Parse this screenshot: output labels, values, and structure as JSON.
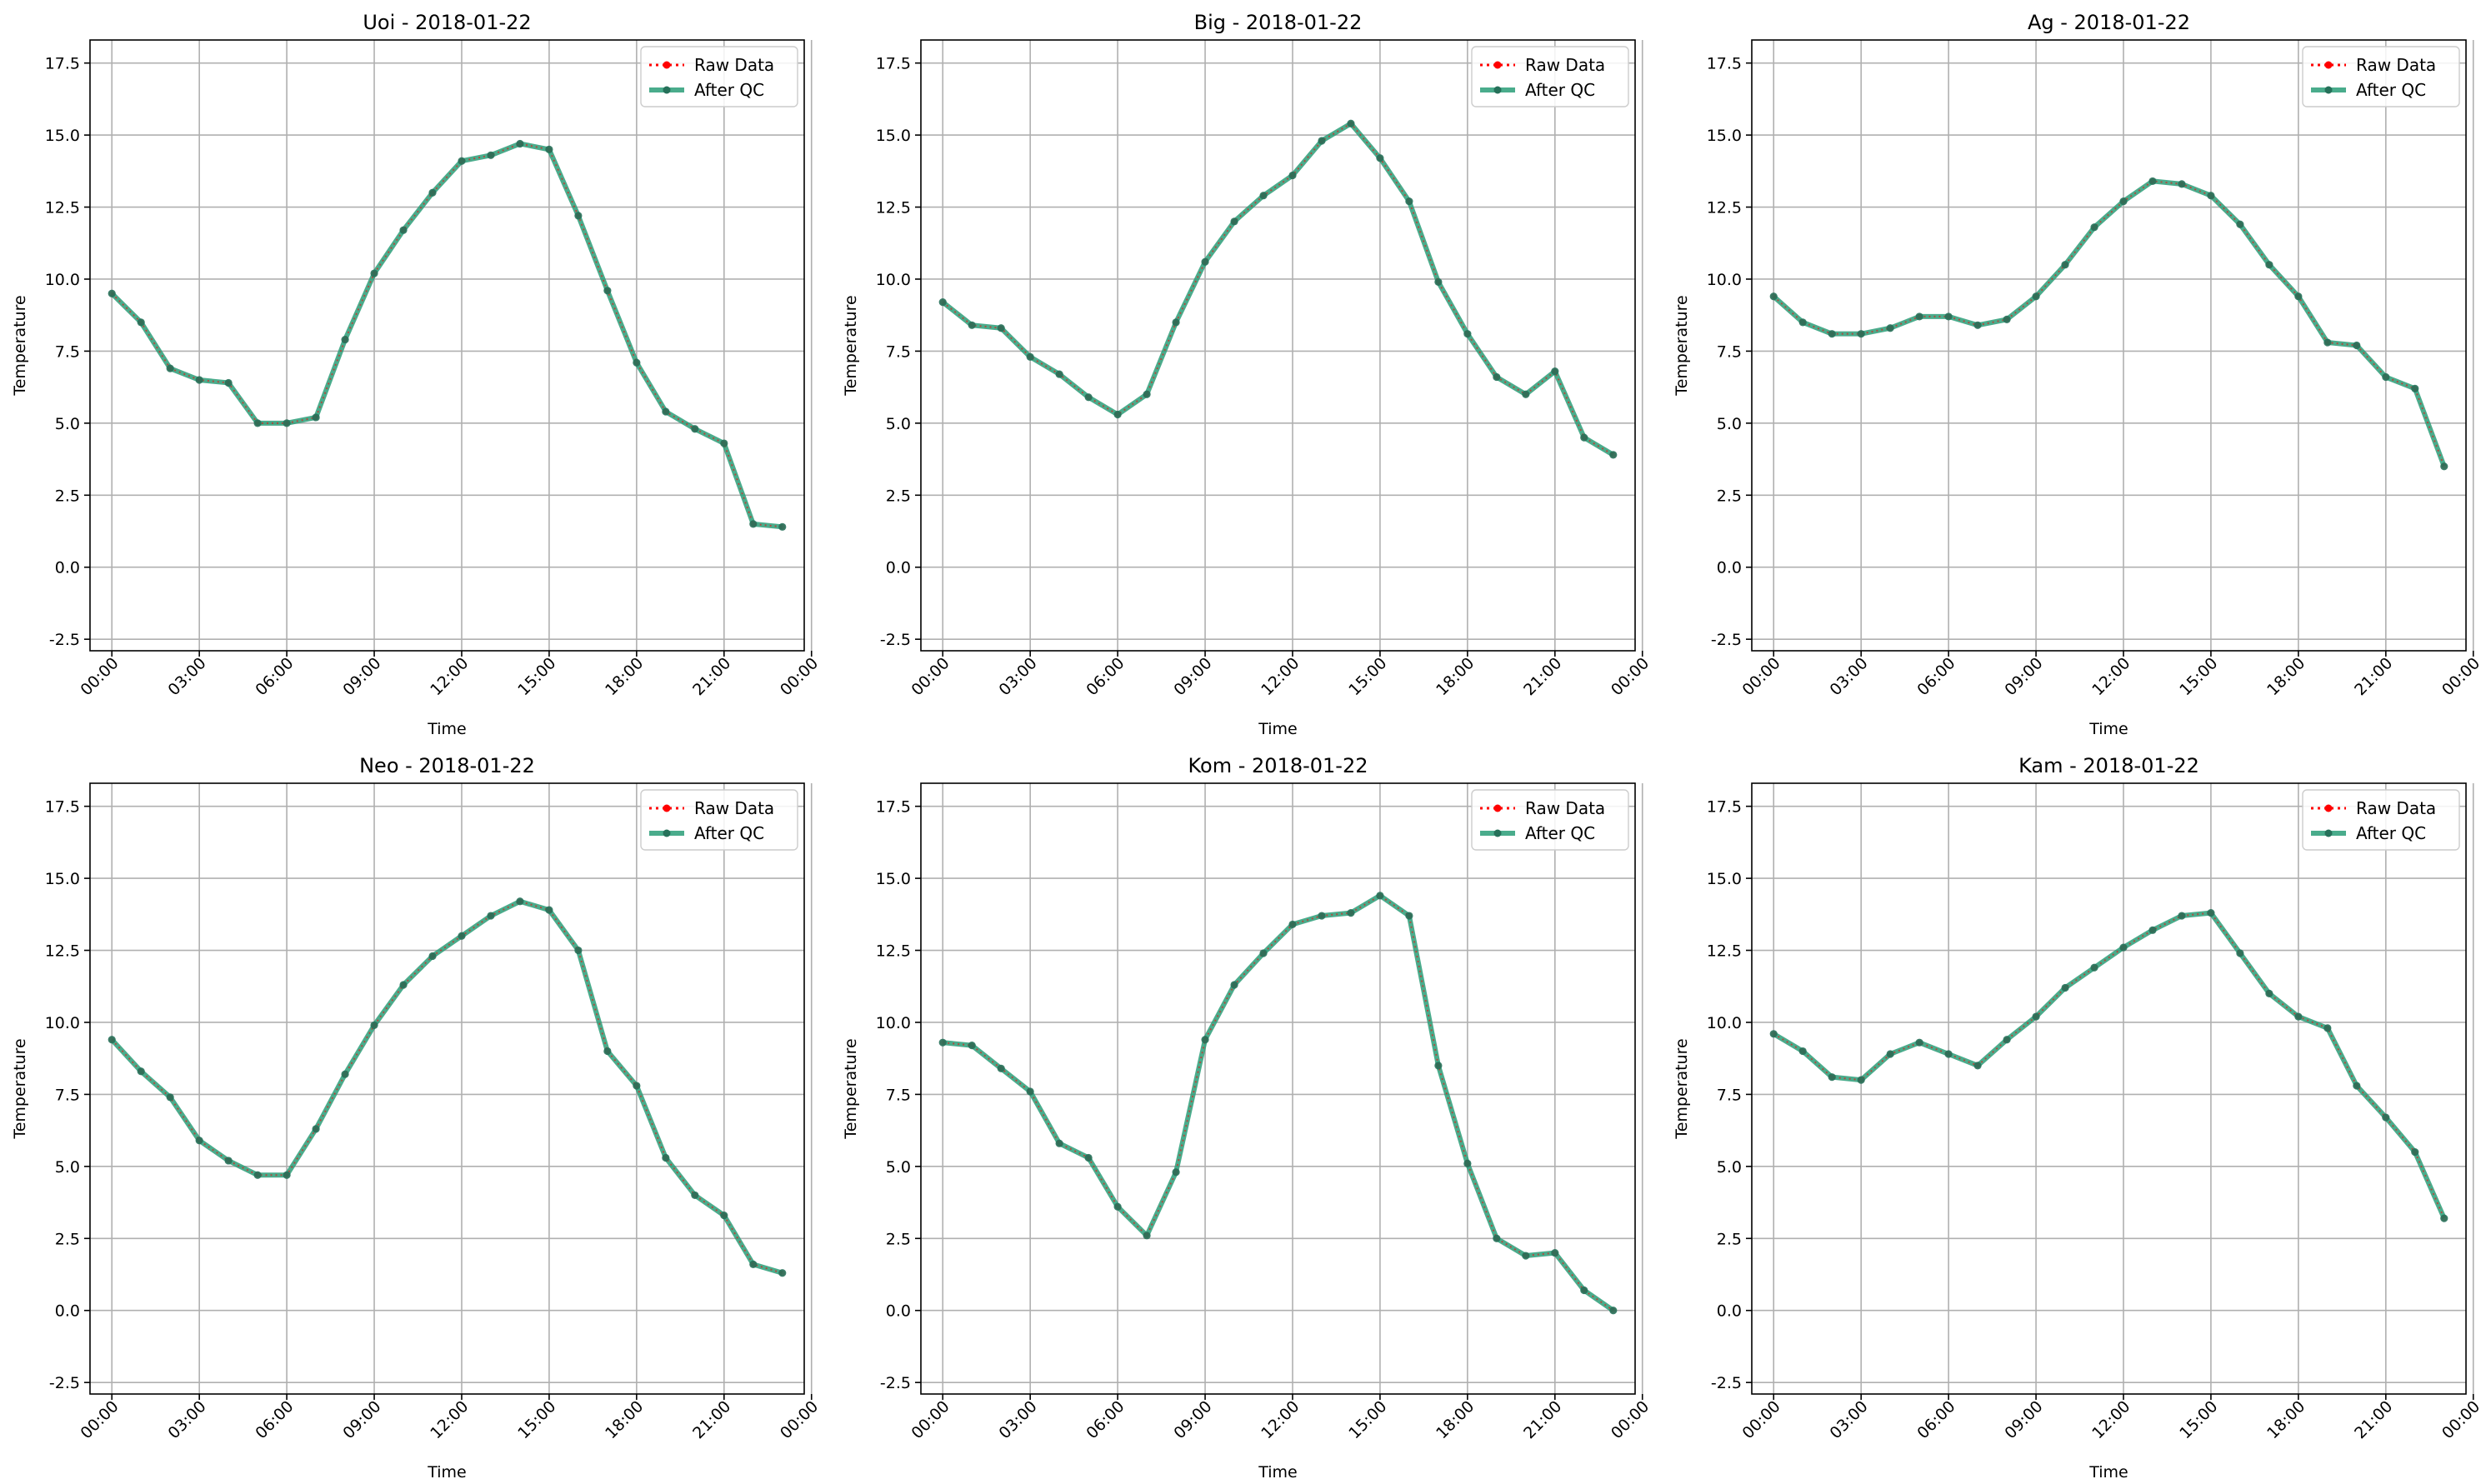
{
  "chart_data": [
    {
      "type": "line",
      "title": "Uoi - 2018-01-22",
      "xlabel": "Time",
      "ylabel": "Temperature",
      "ylim": [
        -2.9,
        18.3
      ],
      "yticks": [
        -2.5,
        0.0,
        2.5,
        5.0,
        7.5,
        10.0,
        12.5,
        15.0,
        17.5
      ],
      "xlim": [
        -0.75,
        23.75
      ],
      "xticks": [
        "00:00",
        "03:00",
        "06:00",
        "09:00",
        "12:00",
        "15:00",
        "18:00",
        "21:00",
        "00:00"
      ],
      "grid": true,
      "legend_position": "top-right",
      "x": [
        "00:00",
        "01:00",
        "02:00",
        "03:00",
        "04:00",
        "05:00",
        "06:00",
        "07:00",
        "08:00",
        "09:00",
        "10:00",
        "11:00",
        "12:00",
        "13:00",
        "14:00",
        "15:00",
        "16:00",
        "17:00",
        "18:00",
        "19:00",
        "20:00",
        "21:00",
        "22:00",
        "23:00"
      ],
      "series": [
        {
          "name": "Raw Data",
          "color": "#ff0000",
          "values": [
            9.5,
            8.5,
            6.9,
            6.5,
            6.4,
            5.0,
            5.0,
            5.2,
            7.9,
            10.2,
            11.7,
            13.0,
            14.1,
            14.3,
            14.7,
            14.5,
            12.2,
            9.6,
            7.1,
            5.4,
            4.8,
            4.3,
            1.5,
            1.4
          ]
        },
        {
          "name": "After QC",
          "color": "#2a9d78",
          "values": [
            9.5,
            8.5,
            6.9,
            6.5,
            6.4,
            5.0,
            5.0,
            5.2,
            7.9,
            10.2,
            11.7,
            13.0,
            14.1,
            14.3,
            14.7,
            14.5,
            12.2,
            9.6,
            7.1,
            5.4,
            4.8,
            4.3,
            1.5,
            1.4
          ]
        }
      ]
    },
    {
      "type": "line",
      "title": "Big - 2018-01-22",
      "xlabel": "Time",
      "ylabel": "Temperature",
      "ylim": [
        -2.9,
        18.3
      ],
      "yticks": [
        -2.5,
        0.0,
        2.5,
        5.0,
        7.5,
        10.0,
        12.5,
        15.0,
        17.5
      ],
      "xlim": [
        -0.75,
        23.75
      ],
      "xticks": [
        "00:00",
        "03:00",
        "06:00",
        "09:00",
        "12:00",
        "15:00",
        "18:00",
        "21:00",
        "00:00"
      ],
      "grid": true,
      "legend_position": "top-right",
      "x": [
        "00:00",
        "01:00",
        "02:00",
        "03:00",
        "04:00",
        "05:00",
        "06:00",
        "07:00",
        "08:00",
        "09:00",
        "10:00",
        "11:00",
        "12:00",
        "13:00",
        "14:00",
        "15:00",
        "16:00",
        "17:00",
        "18:00",
        "19:00",
        "20:00",
        "21:00",
        "22:00",
        "23:00"
      ],
      "series": [
        {
          "name": "Raw Data",
          "color": "#ff0000",
          "values": [
            9.2,
            8.4,
            8.3,
            7.3,
            6.7,
            5.9,
            5.3,
            6.0,
            8.5,
            10.6,
            12.0,
            12.9,
            13.6,
            14.8,
            15.4,
            14.2,
            12.7,
            9.9,
            8.1,
            6.6,
            6.0,
            6.8,
            4.5,
            3.9
          ]
        },
        {
          "name": "After QC",
          "color": "#2a9d78",
          "values": [
            9.2,
            8.4,
            8.3,
            7.3,
            6.7,
            5.9,
            5.3,
            6.0,
            8.5,
            10.6,
            12.0,
            12.9,
            13.6,
            14.8,
            15.4,
            14.2,
            12.7,
            9.9,
            8.1,
            6.6,
            6.0,
            6.8,
            4.5,
            3.9
          ]
        }
      ]
    },
    {
      "type": "line",
      "title": "Ag - 2018-01-22",
      "xlabel": "Time",
      "ylabel": "Temperature",
      "ylim": [
        -2.9,
        18.3
      ],
      "yticks": [
        -2.5,
        0.0,
        2.5,
        5.0,
        7.5,
        10.0,
        12.5,
        15.0,
        17.5
      ],
      "xlim": [
        -0.75,
        23.75
      ],
      "xticks": [
        "00:00",
        "03:00",
        "06:00",
        "09:00",
        "12:00",
        "15:00",
        "18:00",
        "21:00",
        "00:00"
      ],
      "grid": true,
      "legend_position": "top-right",
      "x": [
        "00:00",
        "01:00",
        "02:00",
        "03:00",
        "04:00",
        "05:00",
        "06:00",
        "07:00",
        "08:00",
        "09:00",
        "10:00",
        "11:00",
        "12:00",
        "13:00",
        "14:00",
        "15:00",
        "16:00",
        "17:00",
        "18:00",
        "19:00",
        "20:00",
        "21:00",
        "22:00",
        "23:00"
      ],
      "series": [
        {
          "name": "Raw Data",
          "color": "#ff0000",
          "values": [
            9.4,
            8.5,
            8.1,
            8.1,
            8.3,
            8.7,
            8.7,
            8.4,
            8.6,
            9.4,
            10.5,
            11.8,
            12.7,
            13.4,
            13.3,
            12.9,
            11.9,
            10.5,
            9.4,
            7.8,
            7.7,
            6.6,
            6.2,
            3.5
          ]
        },
        {
          "name": "After QC",
          "color": "#2a9d78",
          "values": [
            9.4,
            8.5,
            8.1,
            8.1,
            8.3,
            8.7,
            8.7,
            8.4,
            8.6,
            9.4,
            10.5,
            11.8,
            12.7,
            13.4,
            13.3,
            12.9,
            11.9,
            10.5,
            9.4,
            7.8,
            7.7,
            6.6,
            6.2,
            3.5
          ]
        }
      ]
    },
    {
      "type": "line",
      "title": "Neo - 2018-01-22",
      "xlabel": "Time",
      "ylabel": "Temperature",
      "ylim": [
        -2.9,
        18.3
      ],
      "yticks": [
        -2.5,
        0.0,
        2.5,
        5.0,
        7.5,
        10.0,
        12.5,
        15.0,
        17.5
      ],
      "xlim": [
        -0.75,
        23.75
      ],
      "xticks": [
        "00:00",
        "03:00",
        "06:00",
        "09:00",
        "12:00",
        "15:00",
        "18:00",
        "21:00",
        "00:00"
      ],
      "grid": true,
      "legend_position": "top-right",
      "x": [
        "00:00",
        "01:00",
        "02:00",
        "03:00",
        "04:00",
        "05:00",
        "06:00",
        "07:00",
        "08:00",
        "09:00",
        "10:00",
        "11:00",
        "12:00",
        "13:00",
        "14:00",
        "15:00",
        "16:00",
        "17:00",
        "18:00",
        "19:00",
        "20:00",
        "21:00",
        "22:00",
        "23:00"
      ],
      "series": [
        {
          "name": "Raw Data",
          "color": "#ff0000",
          "values": [
            9.4,
            8.3,
            7.4,
            5.9,
            5.2,
            4.7,
            4.7,
            6.3,
            8.2,
            9.9,
            11.3,
            12.3,
            13.0,
            13.7,
            14.2,
            13.9,
            12.5,
            9.0,
            7.8,
            5.3,
            4.0,
            3.3,
            1.6,
            1.3
          ]
        },
        {
          "name": "After QC",
          "color": "#2a9d78",
          "values": [
            9.4,
            8.3,
            7.4,
            5.9,
            5.2,
            4.7,
            4.7,
            6.3,
            8.2,
            9.9,
            11.3,
            12.3,
            13.0,
            13.7,
            14.2,
            13.9,
            12.5,
            9.0,
            7.8,
            5.3,
            4.0,
            3.3,
            1.6,
            1.3
          ]
        }
      ]
    },
    {
      "type": "line",
      "title": "Kom - 2018-01-22",
      "xlabel": "Time",
      "ylabel": "Temperature",
      "ylim": [
        -2.9,
        18.3
      ],
      "yticks": [
        -2.5,
        0.0,
        2.5,
        5.0,
        7.5,
        10.0,
        12.5,
        15.0,
        17.5
      ],
      "xlim": [
        -0.75,
        23.75
      ],
      "xticks": [
        "00:00",
        "03:00",
        "06:00",
        "09:00",
        "12:00",
        "15:00",
        "18:00",
        "21:00",
        "00:00"
      ],
      "grid": true,
      "legend_position": "top-right",
      "x": [
        "00:00",
        "01:00",
        "02:00",
        "03:00",
        "04:00",
        "05:00",
        "06:00",
        "07:00",
        "08:00",
        "09:00",
        "10:00",
        "11:00",
        "12:00",
        "13:00",
        "14:00",
        "15:00",
        "16:00",
        "17:00",
        "18:00",
        "19:00",
        "20:00",
        "21:00",
        "22:00",
        "23:00"
      ],
      "series": [
        {
          "name": "Raw Data",
          "color": "#ff0000",
          "values": [
            9.3,
            9.2,
            8.4,
            7.6,
            5.8,
            5.3,
            3.6,
            2.6,
            4.8,
            9.4,
            11.3,
            12.4,
            13.4,
            13.7,
            13.8,
            14.4,
            13.7,
            8.5,
            5.1,
            2.5,
            1.9,
            2.0,
            0.7,
            0.0
          ]
        },
        {
          "name": "After QC",
          "color": "#2a9d78",
          "values": [
            9.3,
            9.2,
            8.4,
            7.6,
            5.8,
            5.3,
            3.6,
            2.6,
            4.8,
            9.4,
            11.3,
            12.4,
            13.4,
            13.7,
            13.8,
            14.4,
            13.7,
            8.5,
            5.1,
            2.5,
            1.9,
            2.0,
            0.7,
            0.0
          ]
        }
      ]
    },
    {
      "type": "line",
      "title": "Kam - 2018-01-22",
      "xlabel": "Time",
      "ylabel": "Temperature",
      "ylim": [
        -2.9,
        18.3
      ],
      "yticks": [
        -2.5,
        0.0,
        2.5,
        5.0,
        7.5,
        10.0,
        12.5,
        15.0,
        17.5
      ],
      "xlim": [
        -0.75,
        23.75
      ],
      "xticks": [
        "00:00",
        "03:00",
        "06:00",
        "09:00",
        "12:00",
        "15:00",
        "18:00",
        "21:00",
        "00:00"
      ],
      "grid": true,
      "legend_position": "top-right",
      "x": [
        "00:00",
        "01:00",
        "02:00",
        "03:00",
        "04:00",
        "05:00",
        "06:00",
        "07:00",
        "08:00",
        "09:00",
        "10:00",
        "11:00",
        "12:00",
        "13:00",
        "14:00",
        "15:00",
        "16:00",
        "17:00",
        "18:00",
        "19:00",
        "20:00",
        "21:00",
        "22:00",
        "23:00"
      ],
      "series": [
        {
          "name": "Raw Data",
          "color": "#ff0000",
          "values": [
            9.6,
            9.0,
            8.1,
            8.0,
            8.9,
            9.3,
            8.9,
            8.5,
            9.4,
            10.2,
            11.2,
            11.9,
            12.6,
            13.2,
            13.7,
            13.8,
            12.4,
            11.0,
            10.2,
            9.8,
            7.8,
            6.7,
            5.5,
            3.2
          ]
        },
        {
          "name": "After QC",
          "color": "#2a9d78",
          "values": [
            9.6,
            9.0,
            8.1,
            8.0,
            8.9,
            9.3,
            8.9,
            8.5,
            9.4,
            10.2,
            11.2,
            11.9,
            12.6,
            13.2,
            13.7,
            13.8,
            12.4,
            11.0,
            10.2,
            9.8,
            7.8,
            6.7,
            5.5,
            3.2
          ]
        }
      ]
    }
  ]
}
